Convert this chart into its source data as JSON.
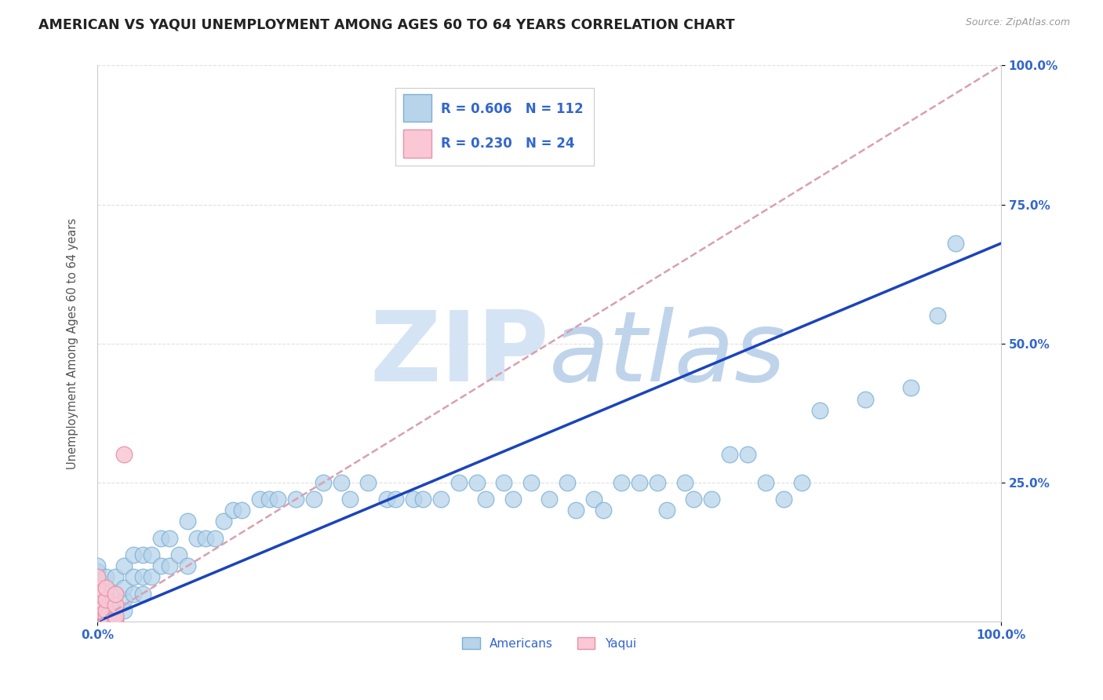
{
  "title": "AMERICAN VS YAQUI UNEMPLOYMENT AMONG AGES 60 TO 64 YEARS CORRELATION CHART",
  "source": "Source: ZipAtlas.com",
  "ylabel": "Unemployment Among Ages 60 to 64 years",
  "xlim": [
    0.0,
    1.0
  ],
  "ylim": [
    0.0,
    1.0
  ],
  "xtick_labels": [
    "0.0%",
    "100.0%"
  ],
  "ytick_labels": [
    "25.0%",
    "50.0%",
    "75.0%",
    "100.0%"
  ],
  "ytick_positions": [
    0.25,
    0.5,
    0.75,
    1.0
  ],
  "R_american": 0.606,
  "N_american": 112,
  "R_yaqui": 0.23,
  "N_yaqui": 24,
  "american_color": "#b8d4ea",
  "american_edge_color": "#7aafd4",
  "yaqui_color": "#f9c8d4",
  "yaqui_edge_color": "#e890a8",
  "regression_line_color_american": "#1a44bb",
  "regression_line_color_yaqui": "#d8a0b0",
  "watermark_color": "#d4e4f4",
  "background_color": "#ffffff",
  "title_color": "#222222",
  "title_fontsize": 12.5,
  "axis_label_color": "#555555",
  "tick_label_color": "#3366cc",
  "source_color": "#999999",
  "grid_color": "#e0e0e0",
  "legend_label_color": "#3366cc",
  "american_x": [
    0.0,
    0.0,
    0.0,
    0.0,
    0.0,
    0.0,
    0.0,
    0.0,
    0.0,
    0.0,
    0.0,
    0.0,
    0.0,
    0.0,
    0.0,
    0.0,
    0.0,
    0.0,
    0.0,
    0.0,
    0.0,
    0.0,
    0.0,
    0.0,
    0.0,
    0.0,
    0.0,
    0.0,
    0.0,
    0.0,
    0.01,
    0.01,
    0.01,
    0.01,
    0.01,
    0.01,
    0.01,
    0.01,
    0.01,
    0.01,
    0.02,
    0.02,
    0.02,
    0.02,
    0.02,
    0.03,
    0.03,
    0.03,
    0.03,
    0.04,
    0.04,
    0.04,
    0.05,
    0.05,
    0.05,
    0.06,
    0.06,
    0.07,
    0.07,
    0.08,
    0.08,
    0.09,
    0.1,
    0.1,
    0.11,
    0.12,
    0.13,
    0.14,
    0.15,
    0.16,
    0.18,
    0.19,
    0.2,
    0.22,
    0.24,
    0.25,
    0.27,
    0.28,
    0.3,
    0.32,
    0.33,
    0.35,
    0.36,
    0.38,
    0.4,
    0.42,
    0.43,
    0.45,
    0.46,
    0.48,
    0.5,
    0.52,
    0.53,
    0.55,
    0.56,
    0.58,
    0.6,
    0.62,
    0.63,
    0.65,
    0.66,
    0.68,
    0.7,
    0.72,
    0.74,
    0.76,
    0.78,
    0.8,
    0.85,
    0.9,
    0.93,
    0.95
  ],
  "american_y": [
    0.0,
    0.0,
    0.0,
    0.0,
    0.0,
    0.0,
    0.0,
    0.0,
    0.0,
    0.0,
    0.01,
    0.01,
    0.01,
    0.01,
    0.02,
    0.02,
    0.02,
    0.03,
    0.03,
    0.03,
    0.04,
    0.04,
    0.05,
    0.05,
    0.06,
    0.07,
    0.08,
    0.08,
    0.09,
    0.1,
    0.0,
    0.0,
    0.0,
    0.01,
    0.02,
    0.03,
    0.04,
    0.05,
    0.06,
    0.08,
    0.0,
    0.01,
    0.02,
    0.05,
    0.08,
    0.02,
    0.04,
    0.06,
    0.1,
    0.05,
    0.08,
    0.12,
    0.05,
    0.08,
    0.12,
    0.08,
    0.12,
    0.1,
    0.15,
    0.1,
    0.15,
    0.12,
    0.1,
    0.18,
    0.15,
    0.15,
    0.15,
    0.18,
    0.2,
    0.2,
    0.22,
    0.22,
    0.22,
    0.22,
    0.22,
    0.25,
    0.25,
    0.22,
    0.25,
    0.22,
    0.22,
    0.22,
    0.22,
    0.22,
    0.25,
    0.25,
    0.22,
    0.25,
    0.22,
    0.25,
    0.22,
    0.25,
    0.2,
    0.22,
    0.2,
    0.25,
    0.25,
    0.25,
    0.2,
    0.25,
    0.22,
    0.22,
    0.3,
    0.3,
    0.25,
    0.22,
    0.25,
    0.38,
    0.4,
    0.42,
    0.55,
    0.68
  ],
  "yaqui_x": [
    0.0,
    0.0,
    0.0,
    0.0,
    0.0,
    0.0,
    0.0,
    0.0,
    0.0,
    0.0,
    0.0,
    0.0,
    0.0,
    0.0,
    0.01,
    0.01,
    0.01,
    0.01,
    0.01,
    0.02,
    0.02,
    0.02,
    0.02,
    0.03
  ],
  "yaqui_y": [
    0.0,
    0.0,
    0.0,
    0.0,
    0.0,
    0.0,
    0.0,
    0.01,
    0.02,
    0.03,
    0.04,
    0.05,
    0.06,
    0.08,
    0.0,
    0.01,
    0.02,
    0.04,
    0.06,
    0.0,
    0.01,
    0.03,
    0.05,
    0.3
  ],
  "blue_line_x0": 0.0,
  "blue_line_y0": 0.0,
  "blue_line_x1": 1.0,
  "blue_line_y1": 0.68,
  "pink_line_x0": 0.0,
  "pink_line_y0": 0.0,
  "pink_line_x1": 1.0,
  "pink_line_y1": 1.0
}
